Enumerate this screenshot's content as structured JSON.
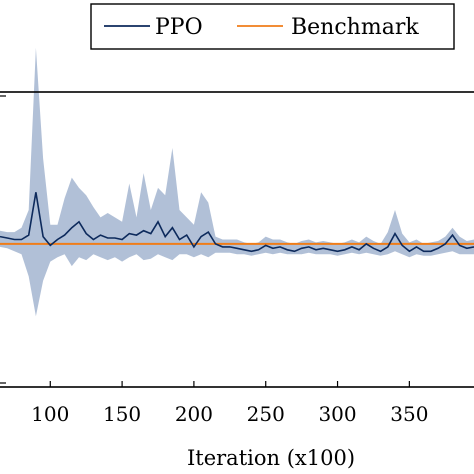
{
  "chart_data": {
    "type": "line",
    "xlabel": "Iteration (x100)",
    "ylabel": "",
    "title": "",
    "x_ticks": [
      100,
      150,
      200,
      250,
      300,
      350
    ],
    "xlim": [
      65,
      395
    ],
    "ylim": [
      -1,
      1
    ],
    "grid": false,
    "legend": {
      "placement": "top-right"
    },
    "series": [
      {
        "name": "PPO",
        "color": "#0d2a5c",
        "band_color": "#a9b9d3",
        "x": [
          65,
          70,
          75,
          80,
          85,
          90,
          95,
          100,
          105,
          110,
          115,
          120,
          125,
          130,
          135,
          140,
          145,
          150,
          155,
          160,
          165,
          170,
          175,
          180,
          185,
          190,
          195,
          200,
          205,
          210,
          215,
          220,
          225,
          230,
          235,
          240,
          245,
          250,
          255,
          260,
          265,
          270,
          275,
          280,
          285,
          290,
          295,
          300,
          305,
          310,
          315,
          320,
          325,
          330,
          335,
          340,
          345,
          350,
          355,
          360,
          365,
          370,
          375,
          380,
          385,
          390,
          395
        ],
        "y": [
          0.02,
          0.01,
          0.0,
          0.0,
          0.03,
          0.32,
          0.02,
          -0.04,
          0.0,
          0.03,
          0.08,
          0.12,
          0.04,
          0.0,
          0.03,
          0.01,
          0.01,
          0.0,
          0.04,
          0.03,
          0.06,
          0.04,
          0.12,
          0.02,
          0.08,
          0.0,
          0.03,
          -0.05,
          0.02,
          0.05,
          -0.03,
          -0.05,
          -0.05,
          -0.06,
          -0.07,
          -0.08,
          -0.07,
          -0.04,
          -0.06,
          -0.05,
          -0.07,
          -0.08,
          -0.06,
          -0.05,
          -0.07,
          -0.06,
          -0.07,
          -0.08,
          -0.07,
          -0.05,
          -0.07,
          -0.03,
          -0.06,
          -0.08,
          -0.05,
          0.04,
          -0.04,
          -0.08,
          -0.05,
          -0.08,
          -0.08,
          -0.06,
          -0.03,
          0.03,
          -0.04,
          -0.06,
          -0.05
        ],
        "lower": [
          -0.05,
          -0.06,
          -0.08,
          -0.1,
          -0.25,
          -0.52,
          -0.28,
          -0.15,
          -0.12,
          -0.1,
          -0.18,
          -0.12,
          -0.14,
          -0.1,
          -0.12,
          -0.14,
          -0.12,
          -0.15,
          -0.12,
          -0.1,
          -0.14,
          -0.13,
          -0.1,
          -0.12,
          -0.14,
          -0.1,
          -0.1,
          -0.12,
          -0.1,
          -0.12,
          -0.09,
          -0.09,
          -0.09,
          -0.1,
          -0.1,
          -0.11,
          -0.1,
          -0.09,
          -0.1,
          -0.09,
          -0.1,
          -0.1,
          -0.1,
          -0.09,
          -0.1,
          -0.1,
          -0.1,
          -0.11,
          -0.1,
          -0.09,
          -0.1,
          -0.09,
          -0.1,
          -0.11,
          -0.1,
          -0.08,
          -0.1,
          -0.12,
          -0.1,
          -0.11,
          -0.11,
          -0.1,
          -0.09,
          -0.08,
          -0.1,
          -0.1,
          -0.1
        ],
        "upper": [
          0.06,
          0.05,
          0.05,
          0.08,
          0.2,
          1.3,
          0.55,
          0.1,
          0.1,
          0.28,
          0.42,
          0.35,
          0.3,
          0.22,
          0.15,
          0.18,
          0.15,
          0.12,
          0.38,
          0.15,
          0.45,
          0.2,
          0.35,
          0.3,
          0.62,
          0.2,
          0.15,
          0.1,
          0.32,
          0.25,
          0.02,
          0.0,
          0.0,
          0.0,
          -0.02,
          -0.03,
          -0.02,
          0.02,
          0.0,
          0.0,
          -0.02,
          -0.03,
          -0.01,
          0.0,
          -0.02,
          -0.01,
          -0.02,
          -0.03,
          -0.02,
          0.0,
          -0.02,
          0.02,
          -0.01,
          -0.03,
          0.05,
          0.2,
          0.04,
          -0.02,
          0.0,
          -0.03,
          -0.02,
          -0.01,
          0.02,
          0.08,
          0.02,
          -0.01,
          0.0
        ]
      },
      {
        "name": "Benchmark",
        "color": "#f07d19",
        "x": [
          65,
          395
        ],
        "y": [
          -0.03,
          -0.03
        ]
      }
    ]
  }
}
